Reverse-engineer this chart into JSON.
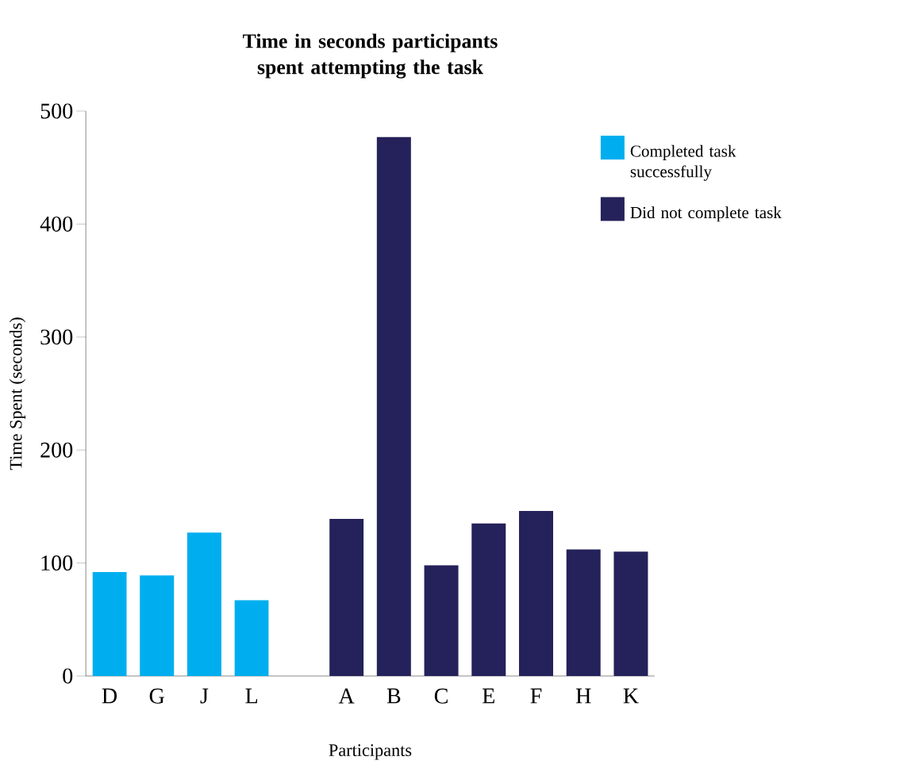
{
  "chart_data": {
    "type": "bar",
    "title": "Time in seconds participants spent attempting the task",
    "categories": [
      "D",
      "G",
      "J",
      "L",
      null,
      "A",
      "B",
      "C",
      "E",
      "F",
      "H",
      "K"
    ],
    "series": [
      {
        "name": "Completed task successfully",
        "color": "#00aeef",
        "values": [
          92,
          89,
          127,
          67,
          null,
          null,
          null,
          null,
          null,
          null,
          null,
          null
        ]
      },
      {
        "name": "Did not complete task",
        "color": "#25215a",
        "values": [
          null,
          null,
          null,
          null,
          null,
          139,
          477,
          98,
          135,
          146,
          112,
          110
        ]
      }
    ],
    "xlabel": "Participants",
    "ylabel": "Time Spent  (seconds)",
    "ylim": [
      0,
      500
    ],
    "yticks": [
      0,
      100,
      200,
      300,
      400,
      500
    ],
    "grid": false,
    "legend": "top right"
  }
}
